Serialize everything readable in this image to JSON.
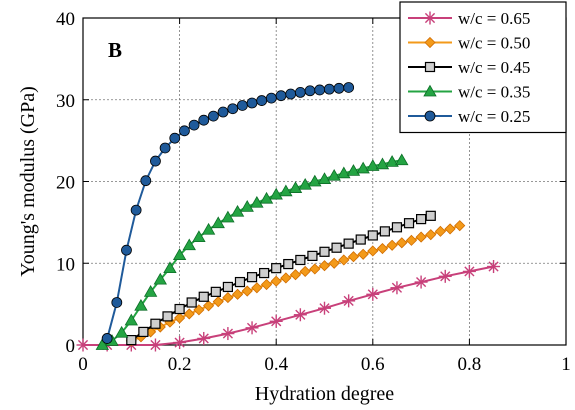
{
  "chart_data": {
    "type": "line",
    "panel_label": "B",
    "xlabel": "Hydration degree",
    "ylabel": "Young's modulus (GPa)",
    "xlim": [
      0,
      1
    ],
    "ylim": [
      0,
      40
    ],
    "xticks": [
      0,
      0.2,
      0.4,
      0.6,
      0.8,
      1
    ],
    "xtick_labels": [
      "0",
      "0.2",
      "0.4",
      "0.6",
      "0.8",
      "1"
    ],
    "yticks": [
      0,
      10,
      20,
      30,
      40
    ],
    "ytick_labels": [
      "0",
      "10",
      "20",
      "30",
      "40"
    ],
    "grid": true,
    "legend_position": "top-right",
    "series": [
      {
        "name": "w/c = 0.65",
        "color": "#c8407a",
        "marker": "asterisk",
        "x": [
          0.0,
          0.05,
          0.1,
          0.15,
          0.2,
          0.25,
          0.3,
          0.35,
          0.4,
          0.45,
          0.5,
          0.55,
          0.6,
          0.65,
          0.7,
          0.75,
          0.8,
          0.85
        ],
        "y": [
          0.0,
          0.0,
          0.0,
          0.0,
          0.3,
          0.8,
          1.4,
          2.1,
          2.9,
          3.7,
          4.5,
          5.4,
          6.2,
          7.0,
          7.7,
          8.4,
          9.0,
          9.6
        ]
      },
      {
        "name": "w/c = 0.50",
        "color": "#f39a1a",
        "marker": "diamond",
        "x": [
          0.1,
          0.12,
          0.14,
          0.16,
          0.18,
          0.2,
          0.22,
          0.24,
          0.26,
          0.28,
          0.3,
          0.32,
          0.34,
          0.36,
          0.38,
          0.4,
          0.42,
          0.44,
          0.46,
          0.48,
          0.5,
          0.52,
          0.54,
          0.56,
          0.58,
          0.6,
          0.62,
          0.64,
          0.66,
          0.68,
          0.7,
          0.72,
          0.74,
          0.76,
          0.78
        ],
        "y": [
          0.5,
          1.0,
          1.6,
          2.2,
          2.8,
          3.3,
          3.8,
          4.3,
          4.8,
          5.3,
          5.8,
          6.2,
          6.6,
          7.0,
          7.4,
          7.8,
          8.2,
          8.6,
          9.0,
          9.3,
          9.7,
          10.0,
          10.4,
          10.8,
          11.1,
          11.5,
          11.8,
          12.2,
          12.5,
          12.8,
          13.2,
          13.5,
          13.9,
          14.2,
          14.6
        ]
      },
      {
        "name": "w/c = 0.45",
        "color": "#111111",
        "marker": "square",
        "x": [
          0.1,
          0.125,
          0.15,
          0.175,
          0.2,
          0.225,
          0.25,
          0.275,
          0.3,
          0.325,
          0.35,
          0.375,
          0.4,
          0.425,
          0.45,
          0.475,
          0.5,
          0.525,
          0.55,
          0.575,
          0.6,
          0.625,
          0.65,
          0.675,
          0.7,
          0.72
        ],
        "y": [
          0.6,
          1.6,
          2.6,
          3.5,
          4.4,
          5.2,
          5.9,
          6.5,
          7.1,
          7.7,
          8.3,
          8.8,
          9.4,
          9.9,
          10.4,
          10.9,
          11.4,
          11.9,
          12.4,
          12.9,
          13.4,
          13.9,
          14.4,
          14.9,
          15.4,
          15.8
        ]
      },
      {
        "name": "w/c = 0.35",
        "color": "#24a443",
        "marker": "triangle",
        "x": [
          0.04,
          0.06,
          0.08,
          0.1,
          0.12,
          0.14,
          0.16,
          0.18,
          0.2,
          0.22,
          0.24,
          0.26,
          0.28,
          0.3,
          0.32,
          0.34,
          0.36,
          0.38,
          0.4,
          0.42,
          0.44,
          0.46,
          0.48,
          0.5,
          0.52,
          0.54,
          0.56,
          0.58,
          0.6,
          0.62,
          0.64,
          0.66
        ],
        "y": [
          0.0,
          0.5,
          1.5,
          3.0,
          4.8,
          6.5,
          8.0,
          9.4,
          11.0,
          12.2,
          13.2,
          14.1,
          14.9,
          15.6,
          16.3,
          16.9,
          17.4,
          17.9,
          18.4,
          18.8,
          19.2,
          19.6,
          20.0,
          20.3,
          20.7,
          21.0,
          21.3,
          21.6,
          21.9,
          22.1,
          22.4,
          22.6
        ]
      },
      {
        "name": "w/c = 0.25",
        "color": "#1f5a9a",
        "marker": "circle",
        "x": [
          0.05,
          0.07,
          0.09,
          0.11,
          0.13,
          0.15,
          0.17,
          0.19,
          0.21,
          0.23,
          0.25,
          0.27,
          0.29,
          0.31,
          0.33,
          0.35,
          0.37,
          0.39,
          0.41,
          0.43,
          0.45,
          0.47,
          0.49,
          0.51,
          0.53,
          0.55
        ],
        "y": [
          0.8,
          5.2,
          11.6,
          16.5,
          20.1,
          22.5,
          24.1,
          25.3,
          26.2,
          26.9,
          27.5,
          28.0,
          28.5,
          28.9,
          29.3,
          29.6,
          29.9,
          30.2,
          30.5,
          30.7,
          30.9,
          31.1,
          31.2,
          31.3,
          31.4,
          31.5
        ]
      }
    ]
  }
}
